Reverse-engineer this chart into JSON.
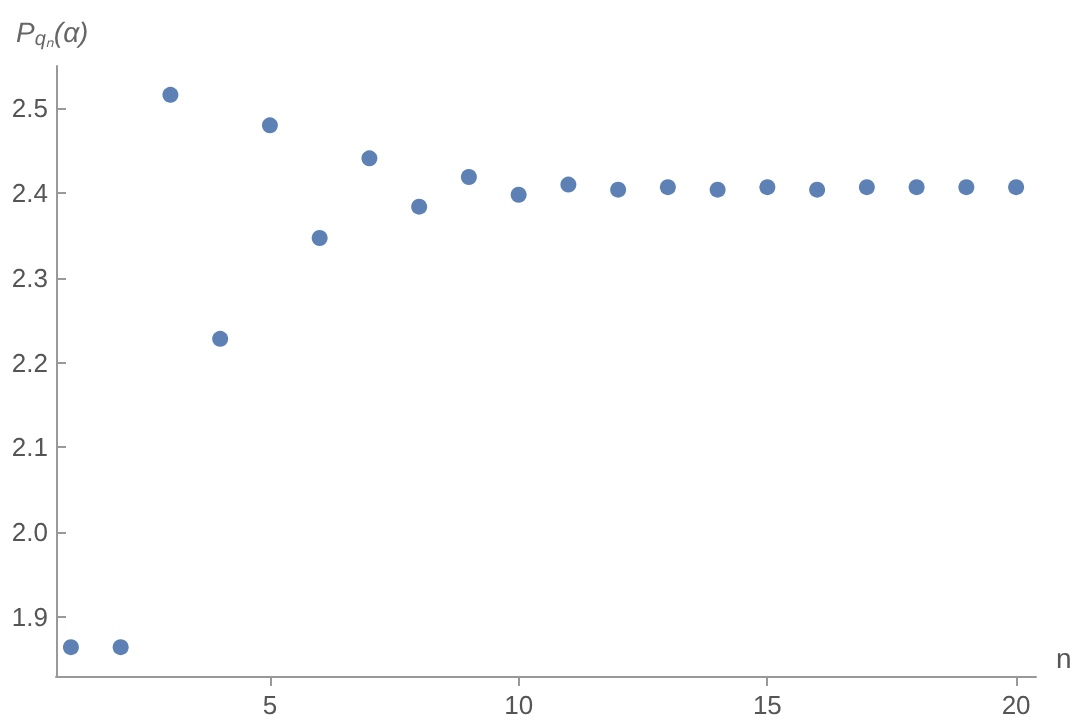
{
  "chart_data": {
    "type": "scatter",
    "ylabel": "P$_{qₙ}$(α)",
    "xlabel": "n",
    "x": [
      1,
      2,
      3,
      4,
      5,
      6,
      7,
      8,
      9,
      10,
      11,
      12,
      13,
      14,
      15,
      16,
      17,
      18,
      19,
      20
    ],
    "series": [
      {
        "color": "#5e81b5",
        "values": [
          1.864,
          1.864,
          2.516,
          2.228,
          2.48,
          2.347,
          2.441,
          2.384,
          2.419,
          2.398,
          2.41,
          2.404,
          2.407,
          2.404,
          2.407,
          2.404,
          2.407,
          2.407,
          2.407,
          2.407
        ]
      }
    ],
    "xlim": [
      0.7,
      20.4
    ],
    "xticks": [
      5,
      10,
      15,
      20
    ],
    "ylim": [
      1.83,
      2.55
    ],
    "yticks": [
      1.9,
      {
        "value": 2.0,
        "label": "2.0"
      },
      2.1,
      2.2,
      2.3,
      2.4,
      2.5
    ],
    "grid": false,
    "marker": "circle"
  }
}
